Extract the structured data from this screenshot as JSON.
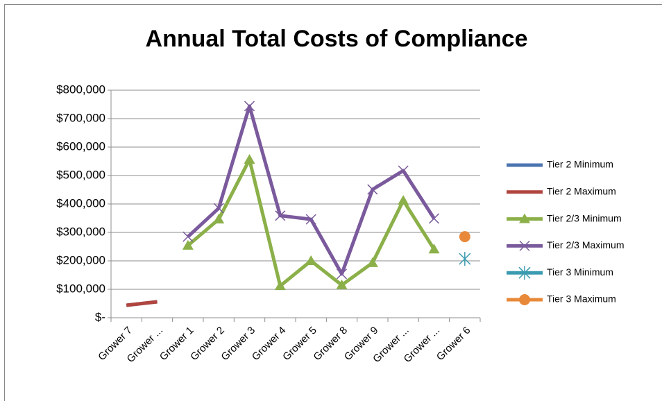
{
  "chart_data": {
    "type": "line",
    "title": "Annual Total Costs of Compliance",
    "categories": [
      "Grower 7",
      "Grower ...",
      "Grower 1",
      "Grower 2",
      "Grower 3",
      "Grower 4",
      "Grower 5",
      "Grower 8",
      "Grower 9",
      "Grower ...",
      "Grower ...",
      "Grower 6"
    ],
    "series": [
      {
        "name": "Tier 2  Minimum",
        "color": "#4a74b0",
        "marker": "none",
        "values": [
          44000,
          56000,
          null,
          null,
          null,
          null,
          null,
          null,
          null,
          null,
          null,
          null
        ]
      },
      {
        "name": "Tier 2 Maximum",
        "color": "#b0443e",
        "marker": "none",
        "values": [
          44000,
          56000,
          null,
          null,
          null,
          null,
          null,
          null,
          null,
          null,
          null,
          null
        ]
      },
      {
        "name": "Tier 2/3 Minimum",
        "color": "#8cb049",
        "marker": "triangle",
        "values": [
          null,
          null,
          254000,
          346000,
          556000,
          112000,
          200000,
          115000,
          193000,
          412000,
          241000,
          null
        ]
      },
      {
        "name": "Tier 2/3  Maximum",
        "color": "#7a5a9c",
        "marker": "x",
        "values": [
          null,
          null,
          285000,
          385000,
          744000,
          359000,
          346000,
          154000,
          451000,
          517000,
          349000,
          null
        ]
      },
      {
        "name": "Tier 3 Minimum",
        "color": "#3b9bb0",
        "marker": "star",
        "values": [
          null,
          null,
          null,
          null,
          null,
          null,
          null,
          null,
          null,
          null,
          null,
          207000
        ]
      },
      {
        "name": "Tier 3 Maximum",
        "color": "#e8893a",
        "marker": "circle",
        "values": [
          null,
          null,
          null,
          null,
          null,
          null,
          null,
          null,
          null,
          null,
          null,
          285000
        ]
      }
    ],
    "ylim": [
      0,
      800000
    ],
    "yticks": [
      {
        "value": 0,
        "label": "$-"
      },
      {
        "value": 100000,
        "label": "$100,000"
      },
      {
        "value": 200000,
        "label": "$200,000"
      },
      {
        "value": 300000,
        "label": "$300,000"
      },
      {
        "value": 400000,
        "label": "$400,000"
      },
      {
        "value": 500000,
        "label": "$500,000"
      },
      {
        "value": 600000,
        "label": "$600,000"
      },
      {
        "value": 700000,
        "label": "$700,000"
      },
      {
        "value": 800000,
        "label": "$800,000"
      }
    ],
    "grid": true,
    "legend": "right"
  }
}
